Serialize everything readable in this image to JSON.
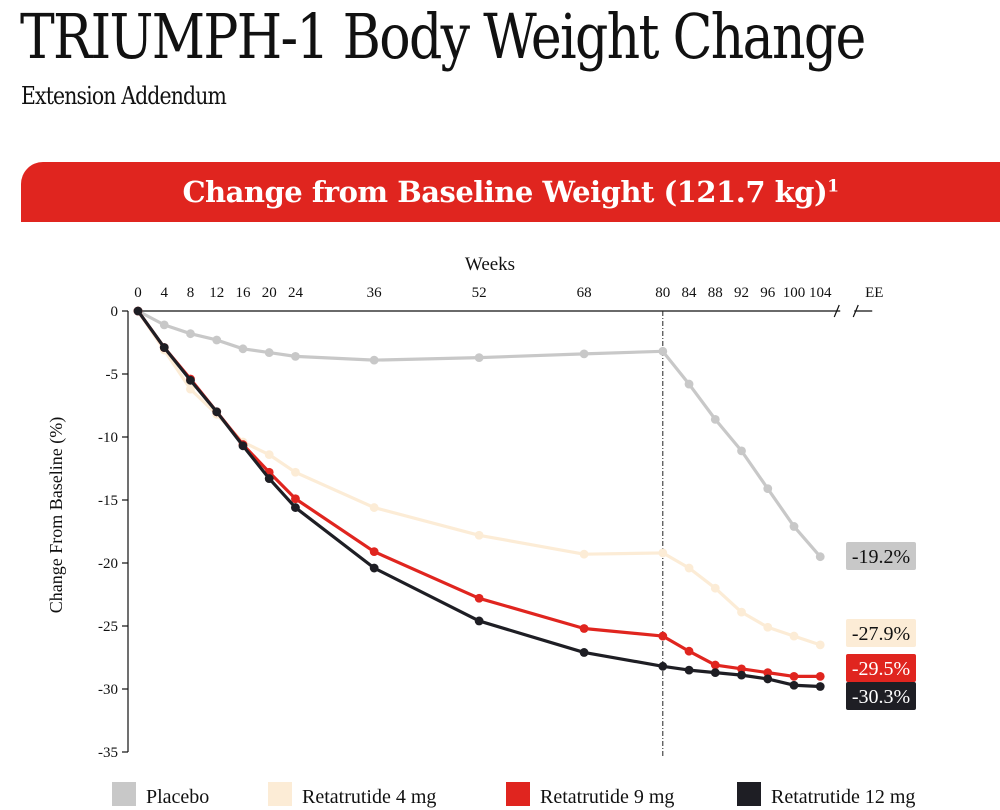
{
  "page": {
    "title": "TRIUMPH-1 Body Weight Change",
    "subtitle": "Extension Addendum",
    "banner_text": "Change from Baseline Weight (121.7 kg)",
    "banner_superscript": "1"
  },
  "chart_data": {
    "type": "line",
    "xlabel": "Weeks",
    "ylabel": "Change From Baseline (%)",
    "x": [
      0,
      4,
      8,
      12,
      16,
      20,
      24,
      36,
      52,
      68,
      80,
      84,
      88,
      92,
      96,
      100,
      104
    ],
    "x_tick_labels": [
      "0",
      "4",
      "8",
      "12",
      "16",
      "20",
      "24",
      "36",
      "52",
      "68",
      "80",
      "84",
      "88",
      "92",
      "96",
      "100",
      "104"
    ],
    "extra_x_tick_label": "EE",
    "ylim": [
      -35,
      0
    ],
    "y_ticks": [
      0,
      -5,
      -10,
      -15,
      -20,
      -25,
      -30,
      -35
    ],
    "reference_line_x": 80,
    "axis_break_after_x": 104,
    "series": [
      {
        "name": "Placebo",
        "color": "#c8c8c8",
        "label_text": "-19.2%",
        "label_text_color": "#111111",
        "values": [
          0,
          -1.1,
          -1.8,
          -2.3,
          -3.0,
          -3.3,
          -3.6,
          -3.9,
          -3.7,
          -3.4,
          -3.2,
          -5.8,
          -8.6,
          -11.1,
          -14.1,
          -17.1,
          -19.5
        ]
      },
      {
        "name": "Retatrutide 4 mg",
        "color": "#fcecd6",
        "label_text": "-27.9%",
        "label_text_color": "#111111",
        "values": [
          0,
          -3.1,
          -6.2,
          -8.2,
          -10.4,
          -11.4,
          -12.8,
          -15.6,
          -17.8,
          -19.3,
          -19.2,
          -20.4,
          -22.0,
          -23.9,
          -25.1,
          -25.8,
          -26.5
        ]
      },
      {
        "name": "Retatrutide 9 mg",
        "color": "#e0251f",
        "label_text": "-29.5%",
        "label_text_color": "#ffffff",
        "values": [
          0,
          -2.9,
          -5.4,
          -8.0,
          -10.6,
          -12.8,
          -14.9,
          -19.1,
          -22.8,
          -25.2,
          -25.8,
          -27.0,
          -28.1,
          -28.4,
          -28.7,
          -29.0,
          -29.0
        ]
      },
      {
        "name": "Retatrutide 12 mg",
        "color": "#1e1e24",
        "label_text": "-30.3%",
        "label_text_color": "#ffffff",
        "values": [
          0,
          -2.9,
          -5.5,
          -8.0,
          -10.7,
          -13.3,
          -15.6,
          -20.4,
          -24.6,
          -27.1,
          -28.2,
          -28.5,
          -28.7,
          -28.9,
          -29.2,
          -29.7,
          -29.8
        ]
      }
    ],
    "legend_placement": "bottom",
    "grid": false
  }
}
